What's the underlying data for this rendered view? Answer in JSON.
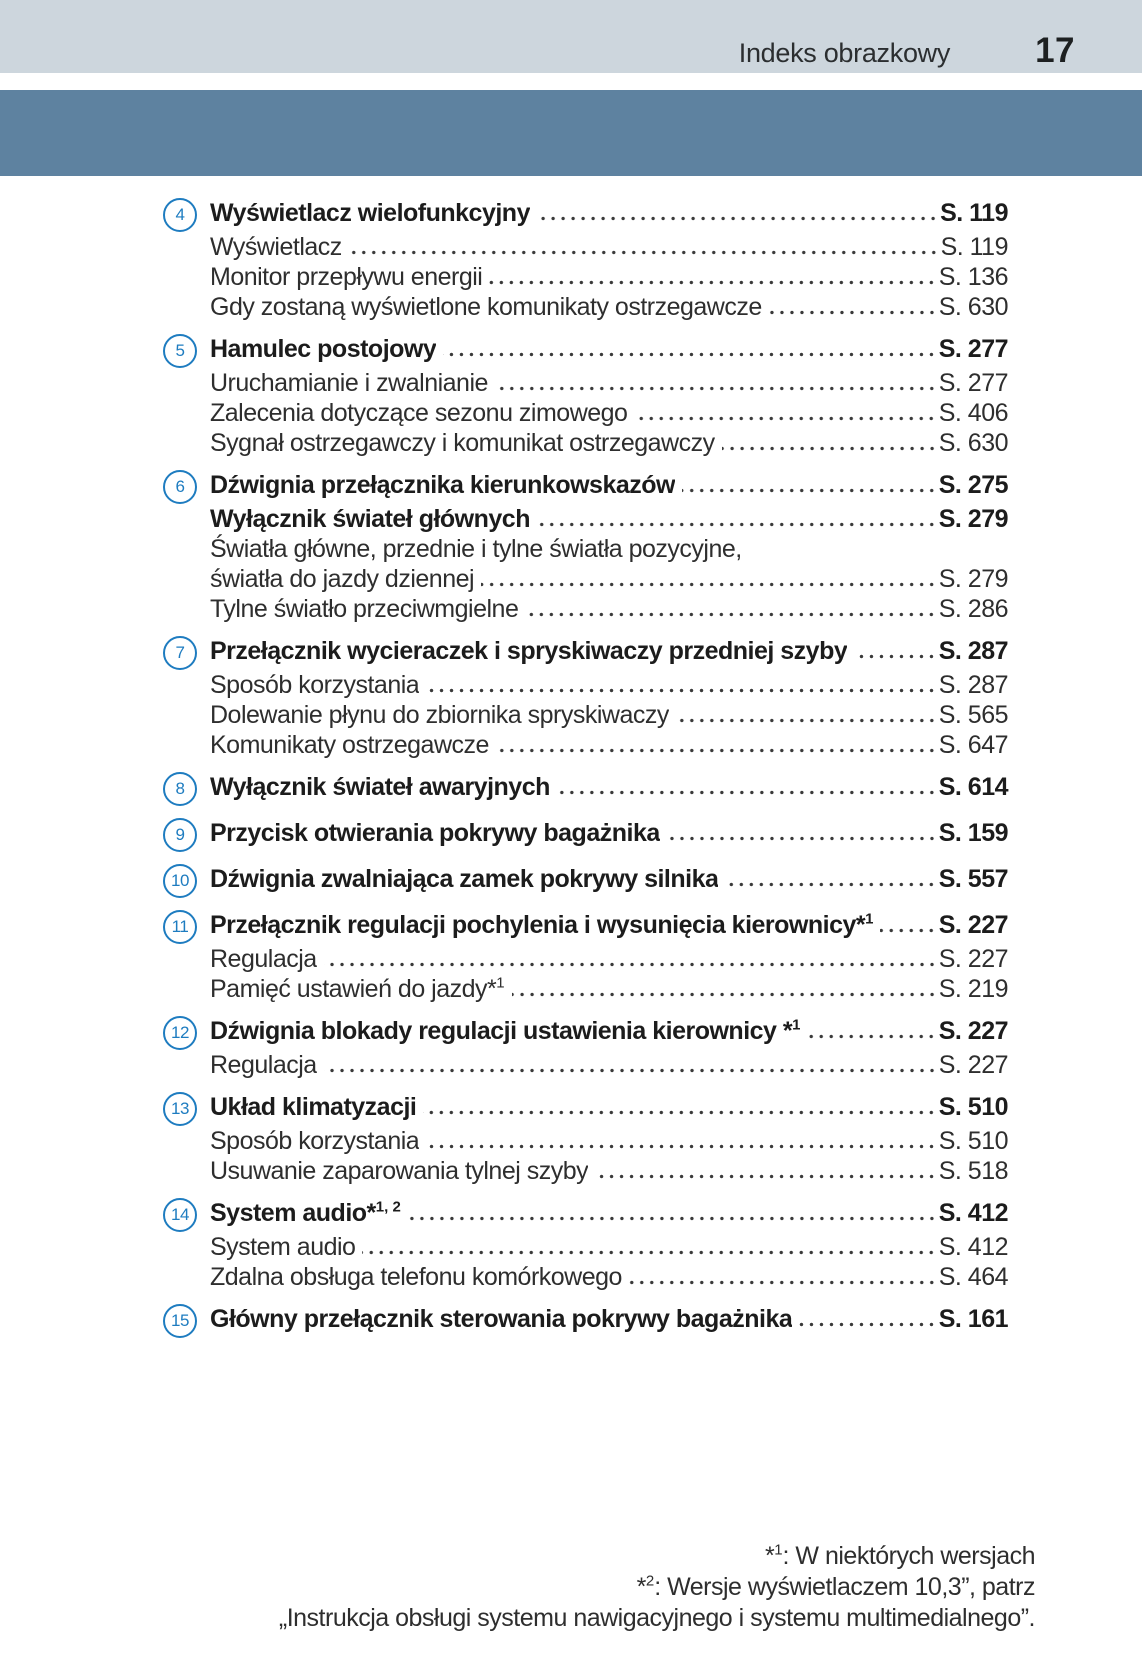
{
  "header": {
    "title": "Indeks obrazkowy",
    "page_number": "17"
  },
  "colors": {
    "header_band": "#cdd6dd",
    "accent_band": "#5e82a0",
    "badge_blue": "#1e7cc0",
    "text": "#2e2e2e"
  },
  "toc": {
    "items": [
      {
        "num": "4",
        "title": "Wyświetlacz wielofunkcyjny",
        "page": "S. 119",
        "subs": [
          {
            "label": "Wyświetlacz",
            "page": "S. 119"
          },
          {
            "label": "Monitor przepływu energii",
            "page": "S. 136"
          },
          {
            "label": "Gdy zostaną wyświetlone komunikaty ostrzegawcze",
            "page": "S. 630"
          }
        ]
      },
      {
        "num": "5",
        "title": "Hamulec postojowy",
        "page": "S. 277",
        "subs": [
          {
            "label": "Uruchamianie i zwalnianie",
            "page": "S. 277"
          },
          {
            "label": "Zalecenia dotyczące sezonu zimowego",
            "page": "S. 406"
          },
          {
            "label": "Sygnał ostrzegawczy i komunikat ostrzegawczy",
            "page": "S. 630"
          }
        ]
      },
      {
        "num": "6",
        "title": "Dźwignia przełącznika kierunkowskazów",
        "page": "S. 275",
        "subs": [
          {
            "label": "Wyłącznik świateł głównych",
            "page": "S. 279"
          },
          {
            "line1": "Światła główne, przednie i tylne światła pozycyjne,",
            "label": "światła do jazdy dziennej",
            "page": "S. 279"
          },
          {
            "label": "Tylne światło przeciwmgielne",
            "page": "S. 286"
          }
        ]
      },
      {
        "num": "7",
        "title": "Przełącznik wycieraczek i spryskiwaczy przedniej szyby",
        "page": "S. 287",
        "subs": [
          {
            "label": "Sposób korzystania",
            "page": "S. 287"
          },
          {
            "label": "Dolewanie płynu do zbiornika spryskiwaczy",
            "page": "S. 565"
          },
          {
            "label": "Komunikaty ostrzegawcze",
            "page": "S. 647"
          }
        ]
      },
      {
        "num": "8",
        "title": "Wyłącznik świateł awaryjnych",
        "page": "S. 614",
        "subs": []
      },
      {
        "num": "9",
        "title": "Przycisk otwierania pokrywy bagażnika",
        "page": "S. 159",
        "subs": []
      },
      {
        "num": "10",
        "title": "Dźwignia zwalniająca zamek pokrywy silnika",
        "page": "S. 557",
        "subs": []
      },
      {
        "num": "11",
        "title": "Przełącznik regulacji pochylenia i wysunięcia kierownicy*",
        "sup": "1",
        "page": "S. 227",
        "subs": [
          {
            "label": "Regulacja",
            "page": "S. 227"
          },
          {
            "label": "Pamięć ustawień do jazdy*",
            "sup": "1",
            "page": "S. 219"
          }
        ]
      },
      {
        "num": "12",
        "title": "Dźwignia blokady regulacji ustawienia kierownicy *",
        "sup": "1",
        "page": "S. 227",
        "subs": [
          {
            "label": "Regulacja",
            "page": "S. 227"
          }
        ]
      },
      {
        "num": "13",
        "title": "Układ klimatyzacji",
        "page": "S. 510",
        "subs": [
          {
            "label": "Sposób korzystania",
            "page": "S. 510"
          },
          {
            "label": "Usuwanie zaparowania tylnej szyby",
            "page": "S. 518"
          }
        ]
      },
      {
        "num": "14",
        "title": "System audio*",
        "sup": "1, 2",
        "page": "S. 412",
        "subs": [
          {
            "label": "System audio",
            "page": "S. 412"
          },
          {
            "label": "Zdalna obsługa telefonu komórkowego",
            "page": "S. 464"
          }
        ]
      },
      {
        "num": "15",
        "title": "Główny przełącznik sterowania pokrywy bagażnika",
        "page": "S. 161",
        "subs": []
      }
    ]
  },
  "footnotes": [
    {
      "star": "*",
      "sup": "1",
      "text": ": W niektórych wersjach"
    },
    {
      "star": "*",
      "sup": "2",
      "text": ": Wersje wyświetlaczem 10,3”, patrz"
    },
    {
      "star": "",
      "sup": "",
      "text": "„Instrukcja obsługi systemu nawigacyjnego i systemu multimedialnego”."
    }
  ]
}
